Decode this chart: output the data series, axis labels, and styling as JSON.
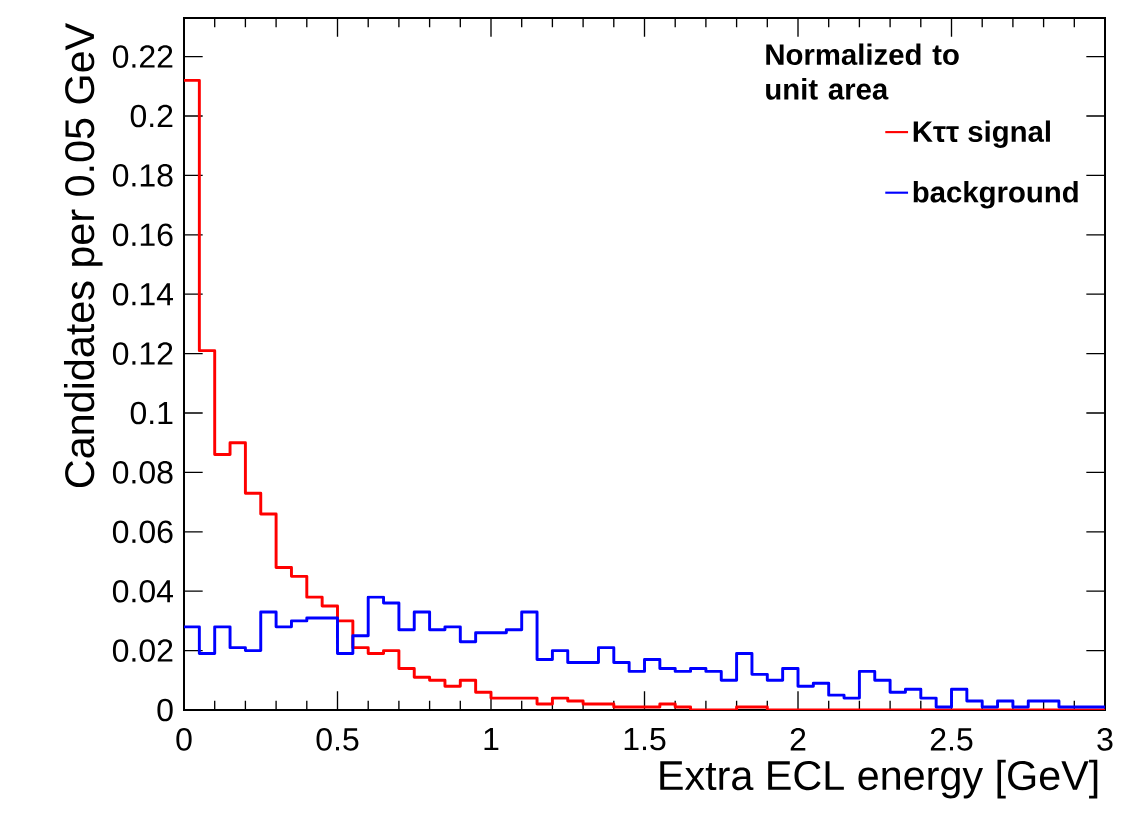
{
  "chart_data": {
    "type": "histogram",
    "xlabel": "Extra ECL energy [GeV]",
    "ylabel": "Candidates per 0.05 GeV",
    "legend_title": "Normalized to unit area",
    "bins": [
      0,
      0.05,
      0.1,
      0.15,
      0.2,
      0.25,
      0.3,
      0.35,
      0.4,
      0.45,
      0.5,
      0.55,
      0.6,
      0.65,
      0.7,
      0.75,
      0.8,
      0.85,
      0.9,
      0.95,
      1,
      1.05,
      1.1,
      1.15,
      1.2,
      1.25,
      1.3,
      1.35,
      1.4,
      1.45,
      1.5,
      1.55,
      1.6,
      1.65,
      1.7,
      1.75,
      1.8,
      1.85,
      1.9,
      1.95,
      2,
      2.05,
      2.1,
      2.15,
      2.2,
      2.25,
      2.3,
      2.35,
      2.4,
      2.45,
      2.5,
      2.55,
      2.6,
      2.65,
      2.7,
      2.75,
      2.8,
      2.85,
      2.9,
      2.95,
      3
    ],
    "series": [
      {
        "name": "Kττ signal",
        "color": "#ff0000",
        "values": [
          0.212,
          0.121,
          0.086,
          0.09,
          0.073,
          0.066,
          0.048,
          0.045,
          0.038,
          0.035,
          0.03,
          0.021,
          0.019,
          0.02,
          0.014,
          0.011,
          0.01,
          0.008,
          0.01,
          0.006,
          0.004,
          0.004,
          0.004,
          0.002,
          0.004,
          0.003,
          0.002,
          0.002,
          0.001,
          0.001,
          0.001,
          0.002,
          0.001,
          0,
          0,
          0,
          0.001,
          0.001,
          0,
          0,
          0,
          0,
          0,
          0,
          0,
          0,
          0,
          0,
          0,
          0,
          0,
          0,
          0,
          0,
          0,
          0,
          0,
          0,
          0,
          0
        ]
      },
      {
        "name": "background",
        "color": "#0000ff",
        "values": [
          0.028,
          0.019,
          0.028,
          0.021,
          0.02,
          0.033,
          0.028,
          0.03,
          0.031,
          0.031,
          0.019,
          0.025,
          0.038,
          0.036,
          0.027,
          0.033,
          0.027,
          0.028,
          0.023,
          0.026,
          0.026,
          0.027,
          0.033,
          0.017,
          0.02,
          0.016,
          0.016,
          0.021,
          0.016,
          0.013,
          0.017,
          0.014,
          0.013,
          0.014,
          0.013,
          0.01,
          0.019,
          0.012,
          0.01,
          0.014,
          0.008,
          0.009,
          0.005,
          0.004,
          0.013,
          0.01,
          0.006,
          0.007,
          0.004,
          0.001,
          0.007,
          0.003,
          0.001,
          0.003,
          0.001,
          0.003,
          0.003,
          0.001,
          0.001,
          0.001
        ]
      }
    ],
    "xlim": [
      0,
      3
    ],
    "ylim": [
      0,
      0.233
    ],
    "xticks": [
      0,
      0.5,
      1,
      1.5,
      2,
      2.5,
      3
    ],
    "yticks": [
      0,
      0.02,
      0.04,
      0.06,
      0.08,
      0.1,
      0.12,
      0.14,
      0.16,
      0.18,
      0.2,
      0.22
    ],
    "legend": "top right",
    "grid": false
  }
}
